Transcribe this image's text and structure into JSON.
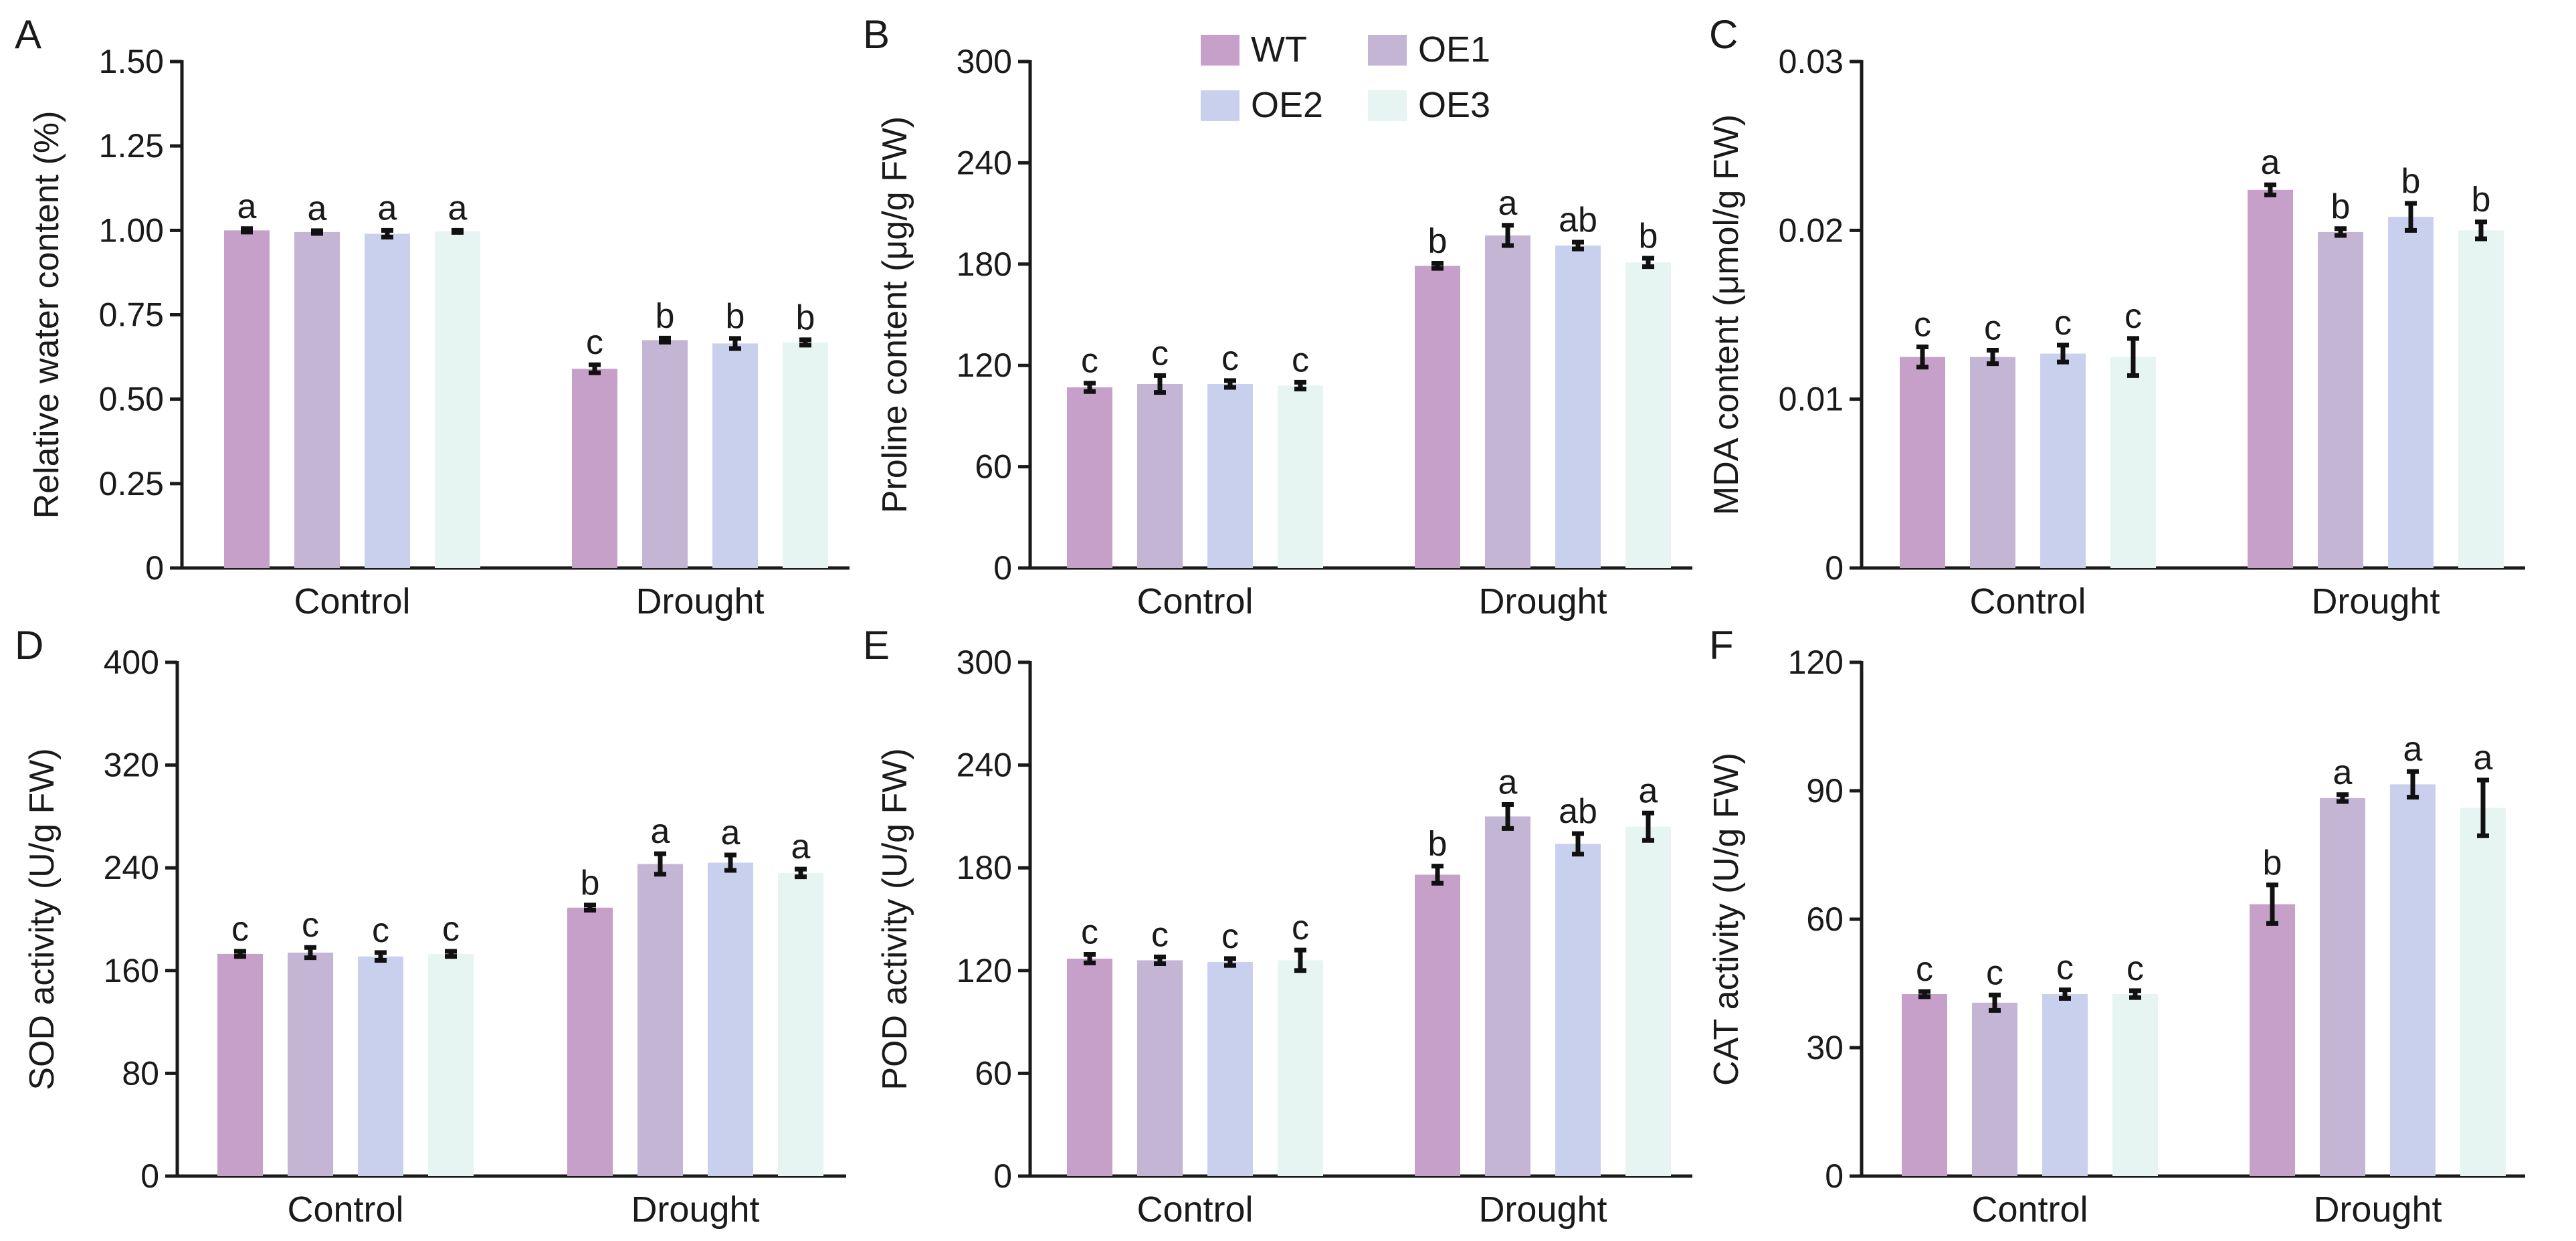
{
  "legend": [
    {
      "name": "WT",
      "color": "#c7a0c9"
    },
    {
      "name": "OE1",
      "color": "#c3b5d3"
    },
    {
      "name": "OE2",
      "color": "#c9d0ee"
    },
    {
      "name": "OE3",
      "color": "#e6f4f2"
    }
  ],
  "chart_data": [
    {
      "type": "bar",
      "letter": "A",
      "title": "",
      "xlabel": "",
      "ylabel": "Relative water content (%)",
      "ylim": [
        0,
        1.5
      ],
      "yticks": [
        "0",
        "0.25",
        "0.50",
        "0.75",
        "1.00",
        "1.25",
        "1.50"
      ],
      "categories": [
        "Control",
        "Drought"
      ],
      "series": [
        {
          "name": "WT",
          "values": [
            1.0,
            0.59
          ],
          "errors": [
            0.005,
            0.012
          ],
          "letters": [
            "a",
            "c"
          ]
        },
        {
          "name": "OE1",
          "values": [
            0.995,
            0.675
          ],
          "errors": [
            0.004,
            0.006
          ],
          "letters": [
            "a",
            "b"
          ]
        },
        {
          "name": "OE2",
          "values": [
            0.99,
            0.665
          ],
          "errors": [
            0.01,
            0.015
          ],
          "letters": [
            "a",
            "b"
          ]
        },
        {
          "name": "OE3",
          "values": [
            0.997,
            0.668
          ],
          "errors": [
            0.003,
            0.008
          ],
          "letters": [
            "a",
            "b"
          ]
        }
      ]
    },
    {
      "type": "bar",
      "letter": "B",
      "title": "",
      "xlabel": "",
      "ylabel": "Proline content (μg/g FW)",
      "ylim": [
        0,
        300
      ],
      "yticks": [
        "0",
        "60",
        "120",
        "180",
        "240",
        "300"
      ],
      "categories": [
        "Control",
        "Drought"
      ],
      "series": [
        {
          "name": "WT",
          "values": [
            107,
            179
          ],
          "errors": [
            2.5,
            1.5
          ],
          "letters": [
            "c",
            "b"
          ]
        },
        {
          "name": "OE1",
          "values": [
            109,
            197
          ],
          "errors": [
            5,
            6
          ],
          "letters": [
            "c",
            "a"
          ]
        },
        {
          "name": "OE2",
          "values": [
            109,
            191
          ],
          "errors": [
            2,
            2
          ],
          "letters": [
            "c",
            "ab"
          ]
        },
        {
          "name": "OE3",
          "values": [
            108,
            181
          ],
          "errors": [
            2,
            2.5
          ],
          "letters": [
            "c",
            "b"
          ]
        }
      ]
    },
    {
      "type": "bar",
      "letter": "C",
      "title": "",
      "xlabel": "",
      "ylabel": "MDA content (μmol/g FW)",
      "ylim": [
        0,
        0.03
      ],
      "yticks": [
        "0",
        "0.01",
        "0.02",
        "0.03"
      ],
      "categories": [
        "Control",
        "Drought"
      ],
      "series": [
        {
          "name": "WT",
          "values": [
            0.0125,
            0.0224
          ],
          "errors": [
            0.0006,
            0.0003
          ],
          "letters": [
            "c",
            "a"
          ]
        },
        {
          "name": "OE1",
          "values": [
            0.0125,
            0.0199
          ],
          "errors": [
            0.0004,
            0.0002
          ],
          "letters": [
            "c",
            "b"
          ]
        },
        {
          "name": "OE2",
          "values": [
            0.0127,
            0.0208
          ],
          "errors": [
            0.0005,
            0.0008
          ],
          "letters": [
            "c",
            "b"
          ]
        },
        {
          "name": "OE3",
          "values": [
            0.0125,
            0.02
          ],
          "errors": [
            0.0011,
            0.0005
          ],
          "letters": [
            "c",
            "b"
          ]
        }
      ]
    },
    {
      "type": "bar",
      "letter": "D",
      "title": "",
      "xlabel": "",
      "ylabel": "SOD activity (U/g FW)",
      "ylim": [
        0,
        400
      ],
      "yticks": [
        "0",
        "80",
        "160",
        "240",
        "320",
        "400"
      ],
      "categories": [
        "Control",
        "Drought"
      ],
      "series": [
        {
          "name": "WT",
          "values": [
            173,
            209
          ],
          "errors": [
            2,
            2
          ],
          "letters": [
            "c",
            "b"
          ]
        },
        {
          "name": "OE1",
          "values": [
            174,
            243
          ],
          "errors": [
            4,
            8
          ],
          "letters": [
            "c",
            "a"
          ]
        },
        {
          "name": "OE2",
          "values": [
            171,
            244
          ],
          "errors": [
            3,
            6
          ],
          "letters": [
            "c",
            "a"
          ]
        },
        {
          "name": "OE3",
          "values": [
            173,
            236
          ],
          "errors": [
            2,
            3
          ],
          "letters": [
            "c",
            "a"
          ]
        }
      ]
    },
    {
      "type": "bar",
      "letter": "E",
      "title": "",
      "xlabel": "",
      "ylabel": "POD activity (U/g FW)",
      "ylim": [
        0,
        300
      ],
      "yticks": [
        "0",
        "60",
        "120",
        "180",
        "240",
        "300"
      ],
      "categories": [
        "Control",
        "Drought"
      ],
      "series": [
        {
          "name": "WT",
          "values": [
            127,
            176
          ],
          "errors": [
            2.5,
            5
          ],
          "letters": [
            "c",
            "b"
          ]
        },
        {
          "name": "OE1",
          "values": [
            126,
            210
          ],
          "errors": [
            2,
            7
          ],
          "letters": [
            "c",
            "a"
          ]
        },
        {
          "name": "OE2",
          "values": [
            125,
            194
          ],
          "errors": [
            2,
            6
          ],
          "letters": [
            "c",
            "ab"
          ]
        },
        {
          "name": "OE3",
          "values": [
            126,
            204
          ],
          "errors": [
            6,
            8
          ],
          "letters": [
            "c",
            "a"
          ]
        }
      ]
    },
    {
      "type": "bar",
      "letter": "F",
      "title": "",
      "xlabel": "",
      "ylabel": "CAT activity (U/g FW)",
      "ylim": [
        0,
        120
      ],
      "yticks": [
        "0",
        "30",
        "60",
        "90",
        "120"
      ],
      "categories": [
        "Control",
        "Drought"
      ],
      "series": [
        {
          "name": "WT",
          "values": [
            42.5,
            63.5
          ],
          "errors": [
            0.6,
            4.5
          ],
          "letters": [
            "c",
            "b"
          ]
        },
        {
          "name": "OE1",
          "values": [
            40.5,
            88.3
          ],
          "errors": [
            1.8,
            0.8
          ],
          "letters": [
            "c",
            "a"
          ]
        },
        {
          "name": "OE2",
          "values": [
            42.5,
            91.5
          ],
          "errors": [
            1,
            3
          ],
          "letters": [
            "c",
            "a"
          ]
        },
        {
          "name": "OE3",
          "values": [
            42.5,
            86
          ],
          "errors": [
            0.8,
            6.5
          ],
          "letters": [
            "c",
            "a"
          ]
        }
      ]
    }
  ]
}
